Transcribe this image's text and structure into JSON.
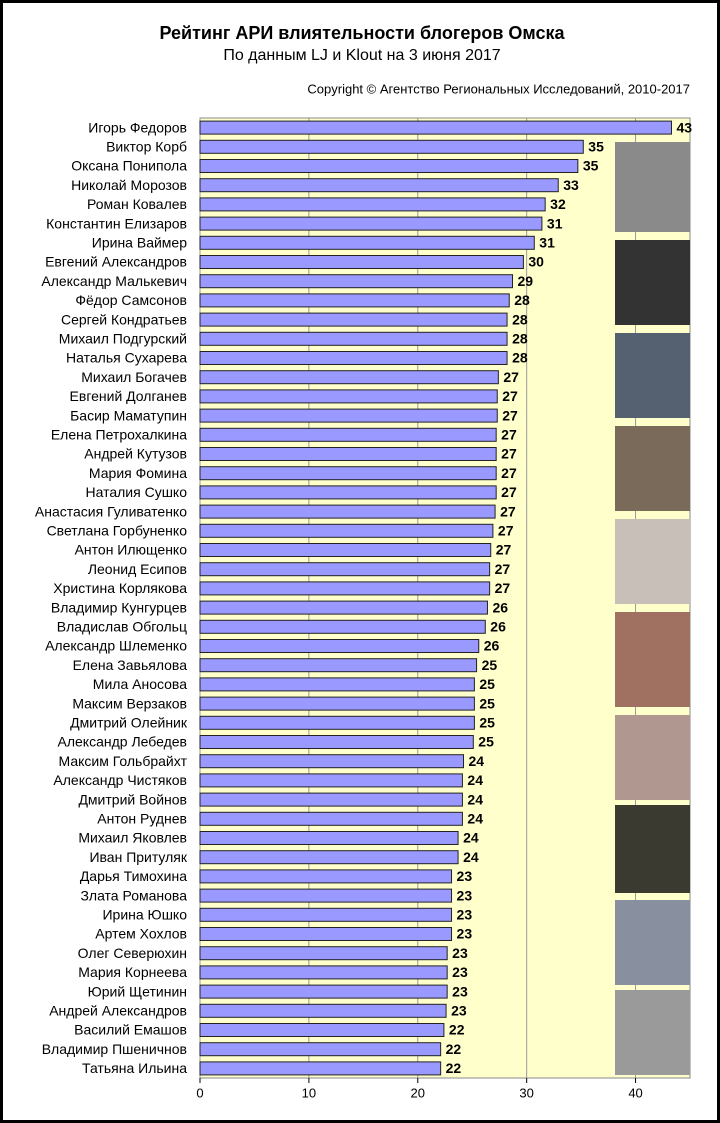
{
  "chart_data": {
    "type": "bar",
    "orientation": "horizontal",
    "title": "Рейтинг АРИ влиятельности блогеров Омска",
    "subtitle": "По данным LJ и Klout на 3 июня 2017",
    "copyright": "Copyright © Агентство Региональных Исследований, 2010-2017",
    "categories": [
      "Игорь Федоров",
      "Виктор Корб",
      "Оксана Понипола",
      "Николай Морозов",
      "Роман Ковалев",
      "Константин Елизаров",
      "Ирина Ваймер",
      "Евгений Александров",
      "Александр Малькевич",
      "Фёдор Самсонов",
      "Сергей Кондратьев",
      "Михаил Подгурский",
      "Наталья Сухарева",
      "Михаил Богачев",
      "Евгений Долганев",
      "Басир Маматупин",
      "Елена Петрохалкина",
      "Андрей Кутузов",
      "Мария Фомина",
      "Наталия Сушко",
      "Анастасия Гуливатенко",
      "Светлана Горбуненко",
      "Антон Илющенко",
      "Леонид Есипов",
      "Христина Корлякова",
      "Владимир Кунгурцев",
      "Владислав Обгольц",
      "Александр Шлеменко",
      "Елена Завьялова",
      "Мила Аносова",
      "Максим Верзаков",
      "Дмитрий Олейник",
      "Александр Лебедев",
      "Максим Гольбрайхт",
      "Александр Чистяков",
      "Дмитрий Войнов",
      "Антон Руднев",
      "Михаил Яковлев",
      "Иван Притуляк",
      "Дарья Тимохина",
      "Злата Романова",
      "Ирина Юшко",
      "Артем Хохлов",
      "Олег Северюхин",
      "Мария Корнеева",
      "Юрий Щетинин",
      "Андрей Александров",
      "Василий Емашов",
      "Владимир Пшеничнов",
      "Татьяна Ильина"
    ],
    "values": [
      43.3,
      35.2,
      34.7,
      32.9,
      31.7,
      31.4,
      30.7,
      29.7,
      28.7,
      28.4,
      28.2,
      28.2,
      28.2,
      27.4,
      27.3,
      27.3,
      27.2,
      27.2,
      27.2,
      27.2,
      27.1,
      26.9,
      26.7,
      26.6,
      26.6,
      26.4,
      26.2,
      25.6,
      25.4,
      25.2,
      25.2,
      25.2,
      25.1,
      24.2,
      24.1,
      24.1,
      24.1,
      23.7,
      23.7,
      23.1,
      23.1,
      23.1,
      23.1,
      22.7,
      22.7,
      22.7,
      22.6,
      22.4,
      22.1,
      22.1
    ],
    "value_labels": [
      "43",
      "35",
      "35",
      "33",
      "32",
      "31",
      "31",
      "30",
      "29",
      "28",
      "28",
      "28",
      "28",
      "27",
      "27",
      "27",
      "27",
      "27",
      "27",
      "27",
      "27",
      "27",
      "27",
      "27",
      "27",
      "26",
      "26",
      "26",
      "25",
      "25",
      "25",
      "25",
      "25",
      "24",
      "24",
      "24",
      "24",
      "24",
      "24",
      "23",
      "23",
      "23",
      "23",
      "23",
      "23",
      "23",
      "23",
      "22",
      "22",
      "22"
    ],
    "color": "#9999ff",
    "xlim": [
      0,
      45
    ],
    "xticks": [
      0,
      10,
      20,
      30,
      40
    ],
    "grid": true
  }
}
